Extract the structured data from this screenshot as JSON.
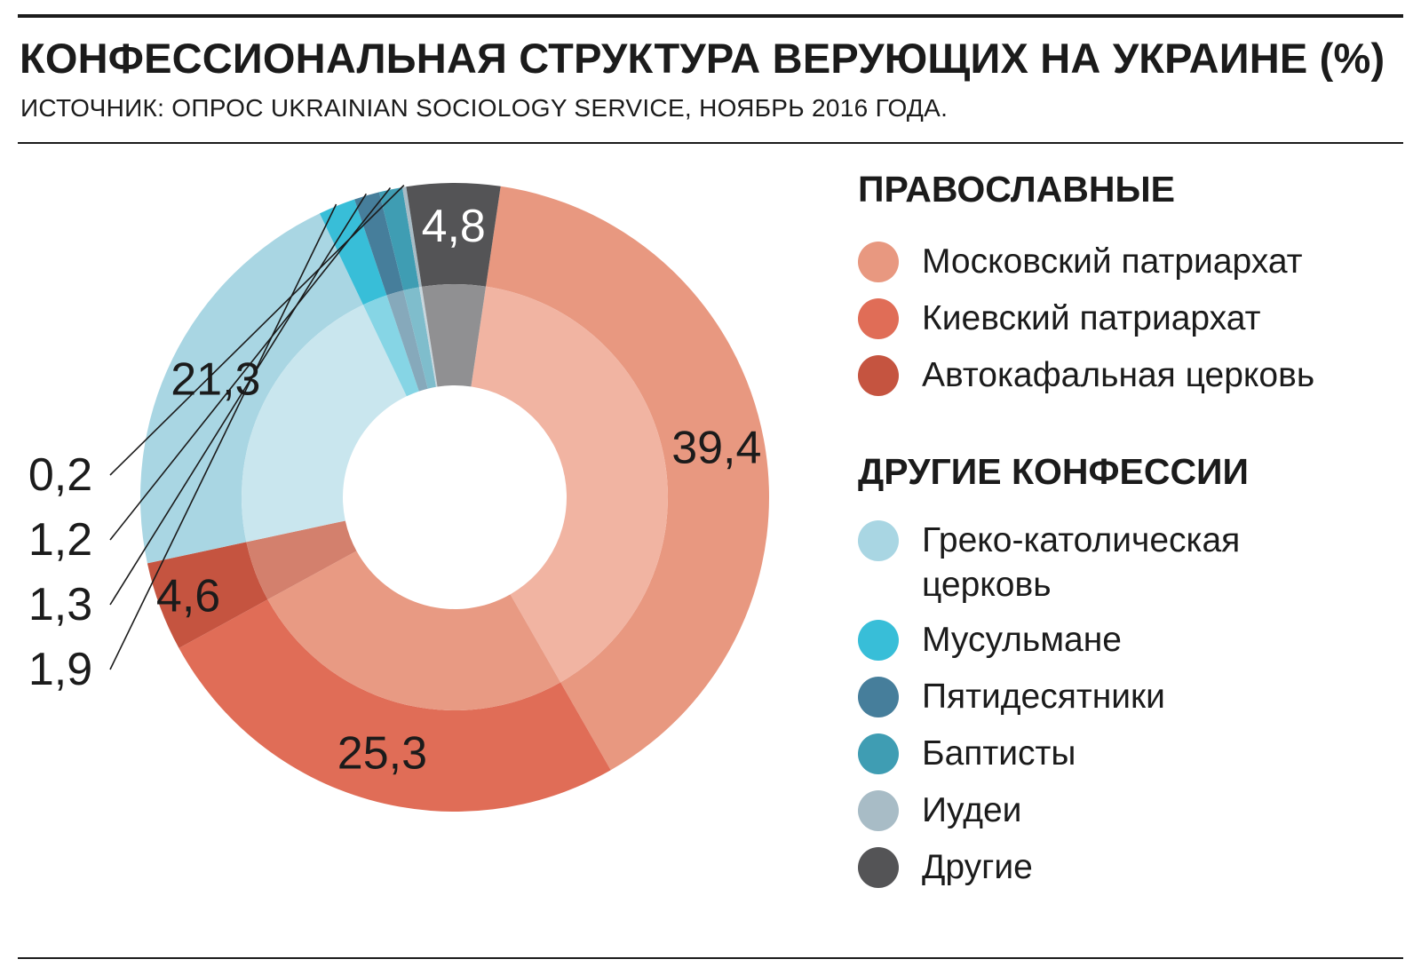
{
  "header": {
    "title": "КОНФЕССИОНАЛЬНАЯ СТРУКТУРА ВЕРУЮЩИХ НА УКРАИНЕ (%)",
    "subtitle": "ИСТОЧНИК: ОПРОС UKRAINIAN SOCIOLOGY SERVICE, НОЯБРЬ 2016 ГОДА."
  },
  "legend": {
    "orthodox_heading": "ПРАВОСЛАВНЫЕ",
    "others_heading": "ДРУГИЕ КОНФЕССИИ"
  },
  "chart_data": {
    "type": "pie",
    "title": "КОНФЕССИОНАЛЬНАЯ СТРУКТУРА ВЕРУЮЩИХ НА УКРАИНЕ (%)",
    "unit": "%",
    "slices": [
      {
        "label": "Московский патриархат",
        "value": 39.4,
        "display": "39,4",
        "group": "ПРАВОСЛАВНЫЕ",
        "color": "#e89880",
        "inner_color": "#f1b4a2"
      },
      {
        "label": "Киевский патриархат",
        "value": 25.3,
        "display": "25,3",
        "group": "ПРАВОСЛАВНЫЕ",
        "color": "#e06d57",
        "inner_color": "#e89a83"
      },
      {
        "label": "Автокафальная церковь",
        "value": 4.6,
        "display": "4,6",
        "group": "ПРАВОСЛАВНЫЕ",
        "color": "#c55440",
        "inner_color": "#d3806d"
      },
      {
        "label": "Греко-католическая церковь",
        "value": 21.3,
        "display": "21,3",
        "group": "ДРУГИЕ КОНФЕССИИ",
        "color": "#a9d6e3",
        "inner_color": "#c9e6ee"
      },
      {
        "label": "Мусульмане",
        "value": 1.9,
        "display": "1,9",
        "group": "ДРУГИЕ КОНФЕССИИ",
        "color": "#38bed8",
        "inner_color": "#86d5e5"
      },
      {
        "label": "Пятидесятники",
        "value": 1.3,
        "display": "1,3",
        "group": "ДРУГИЕ КОНФЕССИИ",
        "color": "#467e9b",
        "inner_color": "#86a9bb"
      },
      {
        "label": "Баптисты",
        "value": 1.2,
        "display": "1,2",
        "group": "ДРУГИЕ КОНФЕССИИ",
        "color": "#3f9db3",
        "inner_color": "#7fbdcc"
      },
      {
        "label": "Иудеи",
        "value": 0.2,
        "display": "0,2",
        "group": "ДРУГИЕ КОНФЕССИИ",
        "color": "#a8bcc6",
        "inner_color": "#c8d6dd"
      },
      {
        "label": "Другие",
        "value": 4.8,
        "display": "4,8",
        "group": "ДРУГИЕ КОНФЕССИИ",
        "color": "#545456",
        "inner_color": "#909092"
      }
    ]
  }
}
